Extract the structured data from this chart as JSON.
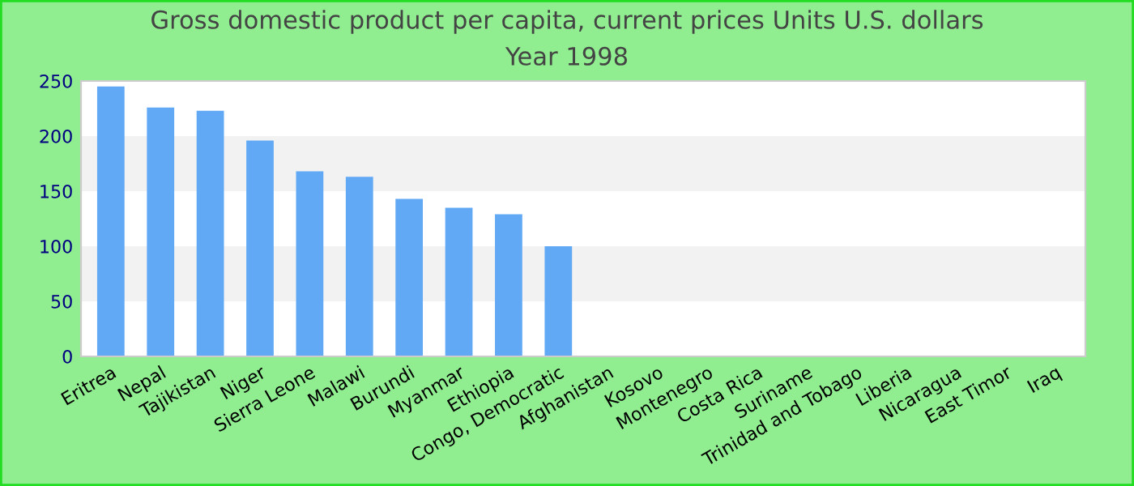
{
  "chart_data": {
    "type": "bar",
    "title": "Gross domestic product per capita, current prices Units U.S. dollars",
    "subtitle": "Year 1998",
    "categories": [
      "Eritrea",
      "Nepal",
      "Tajikistan",
      "Niger",
      "Sierra Leone",
      "Malawi",
      "Burundi",
      "Myanmar",
      "Ethiopia",
      "Congo, Democratic",
      "Afghanistan",
      "Kosovo",
      "Montenegro",
      "Costa Rica",
      "Suriname",
      "Trinidad and Tobago",
      "Liberia",
      "Nicaragua",
      "East Timor",
      "Iraq"
    ],
    "values": [
      245,
      226,
      223,
      196,
      168,
      163,
      143,
      135,
      129,
      100,
      null,
      null,
      null,
      null,
      null,
      null,
      null,
      null,
      null,
      null
    ],
    "color": "#62a9f5",
    "ylim": [
      0,
      250
    ],
    "yticks": [
      0,
      50,
      100,
      150,
      200,
      250
    ],
    "bands": [
      {
        "axis": "y",
        "from": 50,
        "to": 100,
        "color": "#f2f2f2"
      },
      {
        "axis": "y",
        "from": 150,
        "to": 200,
        "color": "#f2f2f2"
      }
    ]
  }
}
